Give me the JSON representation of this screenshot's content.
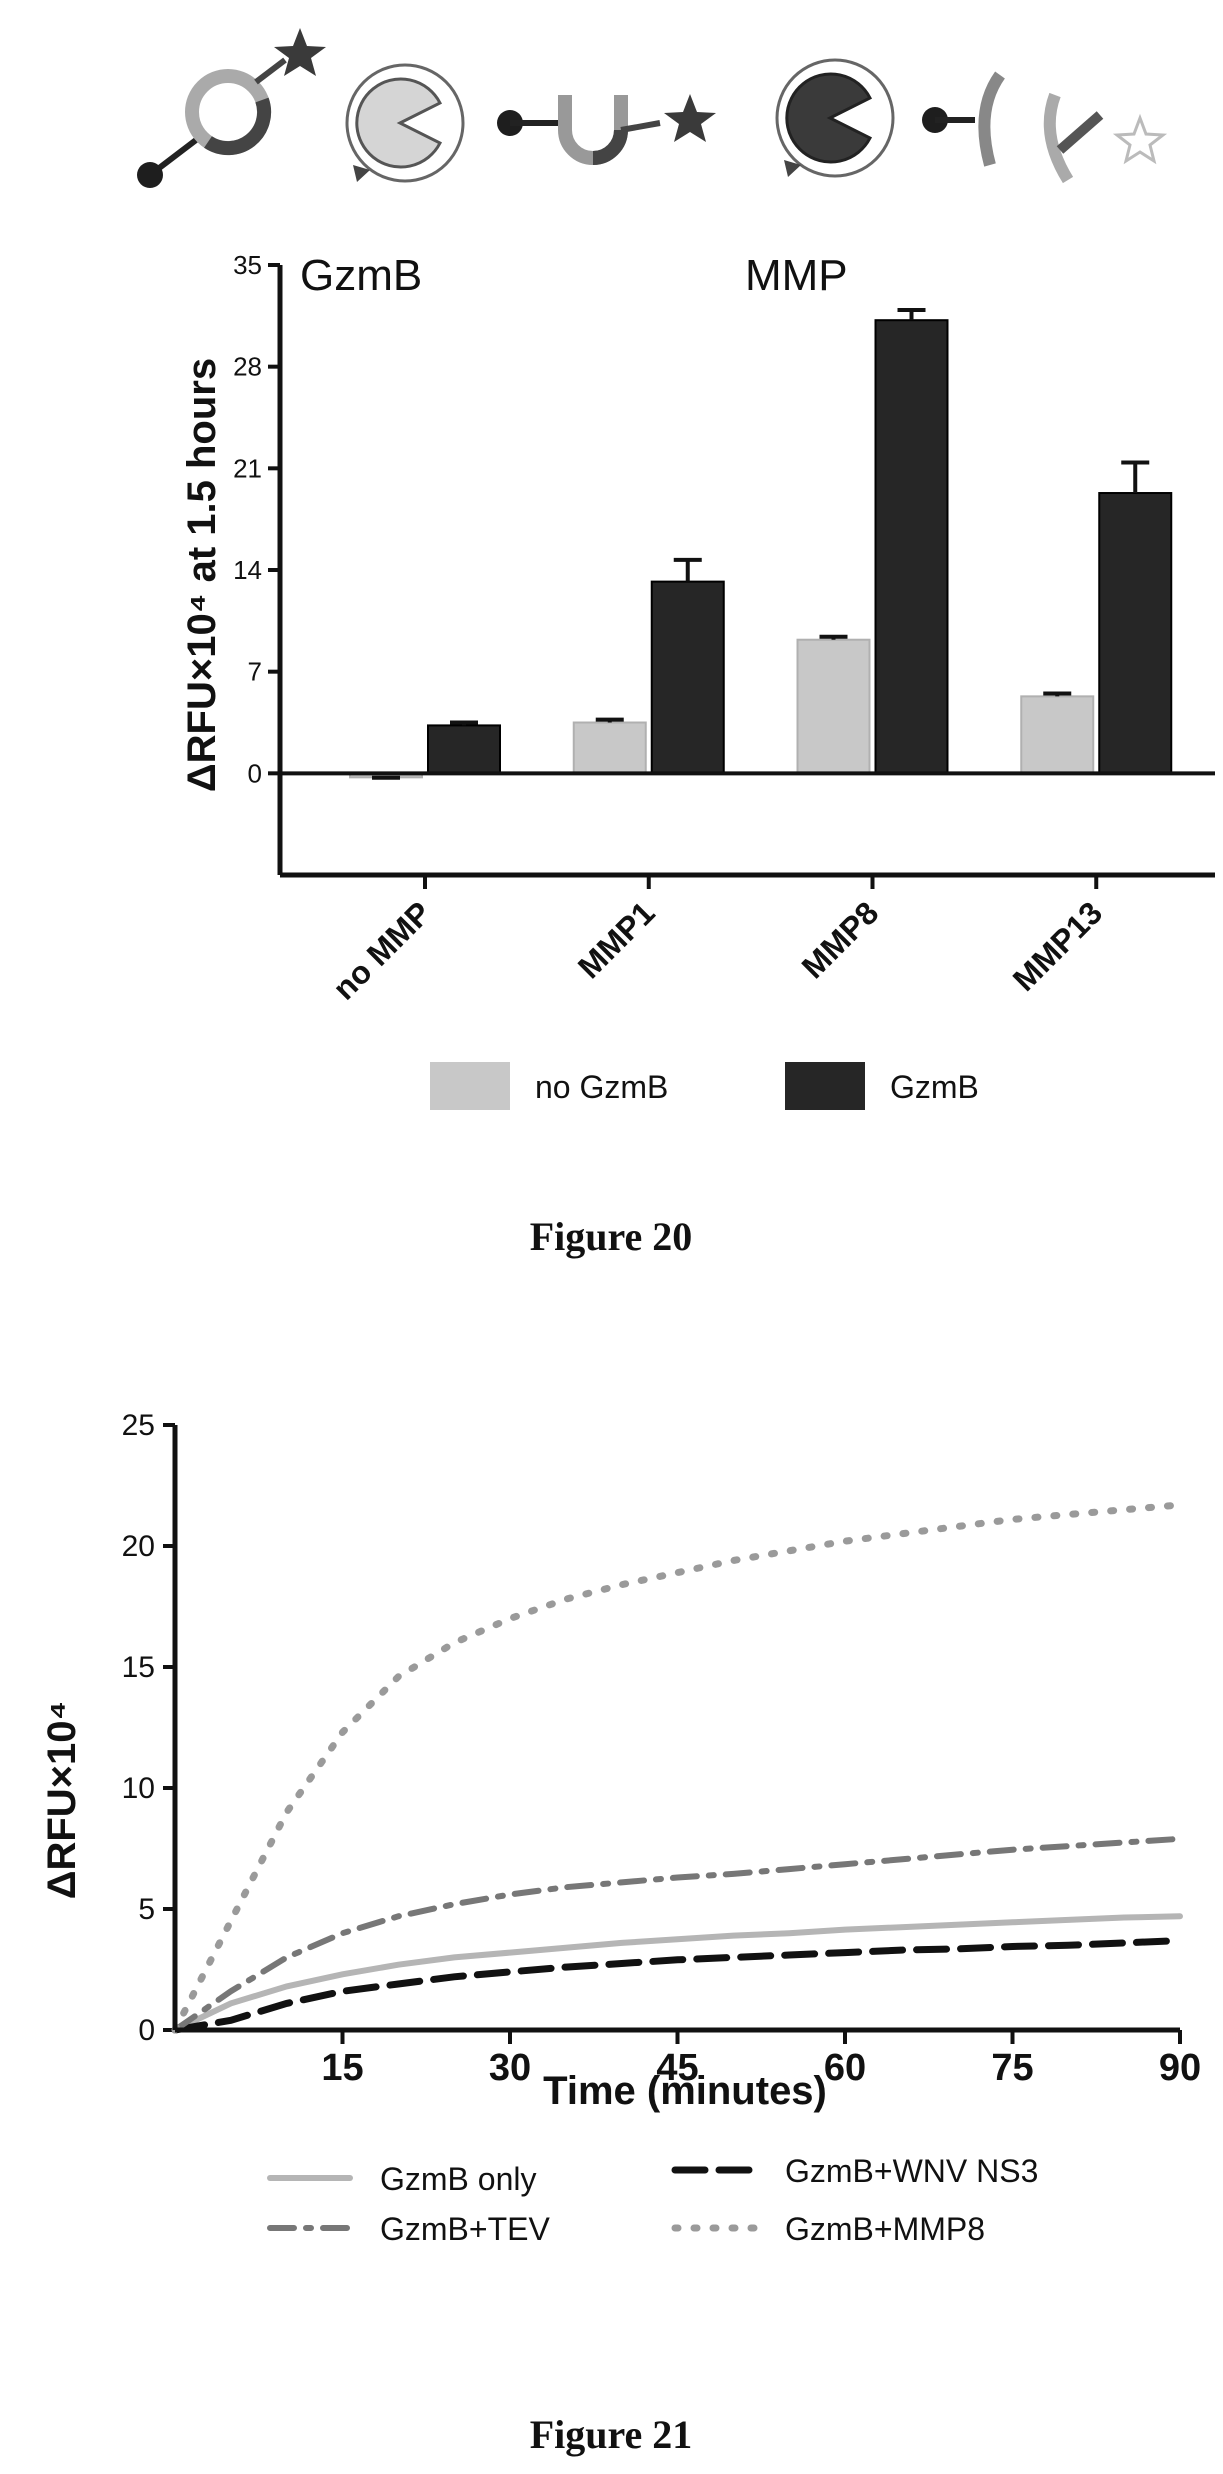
{
  "figure20": {
    "caption": "Figure 20",
    "diagram": {
      "icons": [
        "probe-circle-icon",
        "pacman-enzyme-icon",
        "probe-u-shape-icon",
        "pacman-enzyme-dark-icon",
        "cleaved-fragments-icon"
      ]
    },
    "chart_data": {
      "type": "bar",
      "title_left": "GzmB",
      "title_right": "MMP",
      "ylabel": "ΔRFU×10⁴ at 1.5 hours",
      "ylim": [
        -7,
        35
      ],
      "yticks": [
        0,
        7,
        14,
        21,
        28,
        35
      ],
      "categories": [
        "no MMP",
        "MMP1",
        "MMP8",
        "MMP13"
      ],
      "series": [
        {
          "name": "no GzmB",
          "color": "#c8c8c8",
          "values": [
            -0.2,
            3.5,
            9.2,
            5.3
          ],
          "errors": [
            0.1,
            0.2,
            0.2,
            0.2
          ]
        },
        {
          "name": "GzmB",
          "color": "#262626",
          "values": [
            3.3,
            13.2,
            31.2,
            19.3
          ],
          "errors": [
            0.2,
            1.5,
            0.7,
            2.1
          ]
        }
      ]
    }
  },
  "figure21": {
    "caption": "Figure 21",
    "chart_data": {
      "type": "line",
      "xlabel": "Time (minutes)",
      "ylabel": "ΔRFU×10⁴",
      "xlim": [
        0,
        90
      ],
      "ylim": [
        0,
        25
      ],
      "xticks": [
        15,
        30,
        45,
        60,
        75,
        90
      ],
      "yticks": [
        0,
        5,
        10,
        15,
        20,
        25
      ],
      "x": [
        0,
        5,
        10,
        15,
        20,
        25,
        30,
        35,
        40,
        45,
        50,
        55,
        60,
        65,
        70,
        75,
        80,
        85,
        90
      ],
      "series": [
        {
          "name": "GzmB only",
          "style": "solid",
          "color": "#b5b5b5",
          "values": [
            0,
            1.1,
            1.8,
            2.3,
            2.7,
            3.0,
            3.2,
            3.4,
            3.6,
            3.75,
            3.9,
            4.0,
            4.15,
            4.25,
            4.35,
            4.45,
            4.55,
            4.65,
            4.7
          ]
        },
        {
          "name": "GzmB+WNV NS3",
          "style": "dash",
          "color": "#111111",
          "values": [
            0,
            0.4,
            1.1,
            1.6,
            1.9,
            2.2,
            2.4,
            2.6,
            2.75,
            2.9,
            3.0,
            3.1,
            3.2,
            3.3,
            3.35,
            3.45,
            3.5,
            3.6,
            3.7
          ]
        },
        {
          "name": "GzmB+TEV",
          "style": "dashdot",
          "color": "#777777",
          "values": [
            0,
            1.6,
            3.0,
            4.0,
            4.7,
            5.2,
            5.6,
            5.9,
            6.1,
            6.3,
            6.45,
            6.65,
            6.85,
            7.05,
            7.25,
            7.45,
            7.6,
            7.75,
            7.9
          ]
        },
        {
          "name": "GzmB+MMP8",
          "style": "dot",
          "color": "#9a9a9a",
          "values": [
            0,
            4.5,
            9.0,
            12.3,
            14.6,
            16.0,
            17.0,
            17.8,
            18.4,
            18.9,
            19.4,
            19.8,
            20.2,
            20.5,
            20.8,
            21.1,
            21.3,
            21.5,
            21.7
          ]
        }
      ]
    }
  }
}
